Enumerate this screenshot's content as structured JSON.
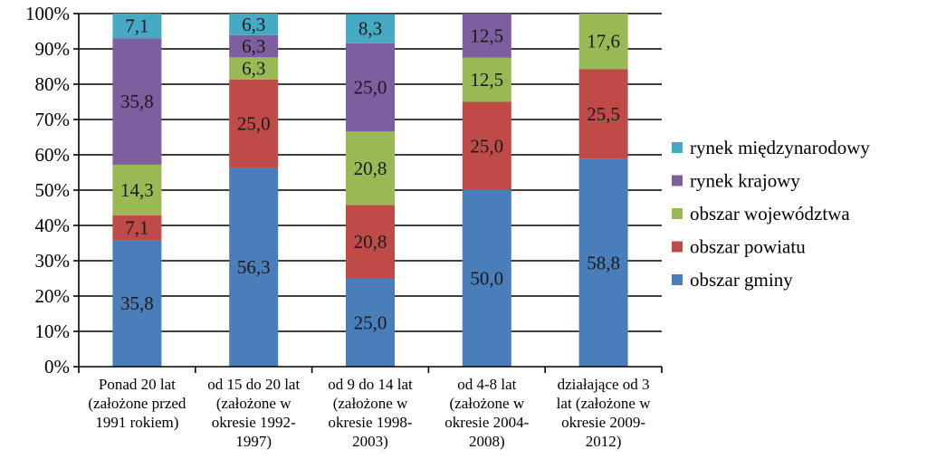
{
  "chart_data": {
    "type": "bar",
    "stacked": true,
    "percent": true,
    "categories": [
      [
        "Ponad 20 lat",
        "(założone przed",
        "1991 rokiem)"
      ],
      [
        "od 15 do 20 lat",
        "(założone w",
        "okresie 1992-",
        "1997)"
      ],
      [
        "od 9 do 14 lat",
        "(założone w",
        "okresie 1998-",
        "2003)"
      ],
      [
        "od 4-8 lat",
        "(założone w",
        "okresie 2004-",
        "2008)"
      ],
      [
        "działające od 3",
        "lat (założone w",
        "okresie 2009-",
        "2012)"
      ]
    ],
    "series": [
      {
        "name": "obszar gminy",
        "color": "#4a7ebb",
        "values": [
          35.8,
          56.3,
          25.0,
          50.0,
          58.8
        ],
        "labels": [
          "35,8",
          "56,3",
          "25,0",
          "50,0",
          "58,8"
        ]
      },
      {
        "name": "obszar powiatu",
        "color": "#be4b48",
        "values": [
          7.1,
          25.0,
          20.8,
          25.0,
          25.5
        ],
        "labels": [
          "7,1",
          "25,0",
          "20,8",
          "25,0",
          "25,5"
        ]
      },
      {
        "name": "obszar województwa",
        "color": "#98b954",
        "values": [
          14.3,
          6.3,
          20.8,
          12.5,
          17.6
        ],
        "labels": [
          "14,3",
          "6,3",
          "20,8",
          "12,5",
          "17,6"
        ]
      },
      {
        "name": "rynek krajowy",
        "color": "#7d5fa0",
        "values": [
          35.8,
          6.3,
          25.0,
          12.5,
          0
        ],
        "labels": [
          "35,8",
          "6,3",
          "25,0",
          "12,5",
          ""
        ]
      },
      {
        "name": "rynek międzynarodowy",
        "color": "#46aac5",
        "values": [
          7.1,
          6.3,
          8.3,
          0,
          0
        ],
        "labels": [
          "7,1",
          "6,3",
          "8,3",
          "",
          ""
        ]
      }
    ],
    "y_ticks": [
      "0%",
      "10%",
      "20%",
      "30%",
      "40%",
      "50%",
      "60%",
      "70%",
      "80%",
      "90%",
      "100%"
    ],
    "ylim": [
      0,
      100
    ],
    "grid": true,
    "legend": "right"
  }
}
